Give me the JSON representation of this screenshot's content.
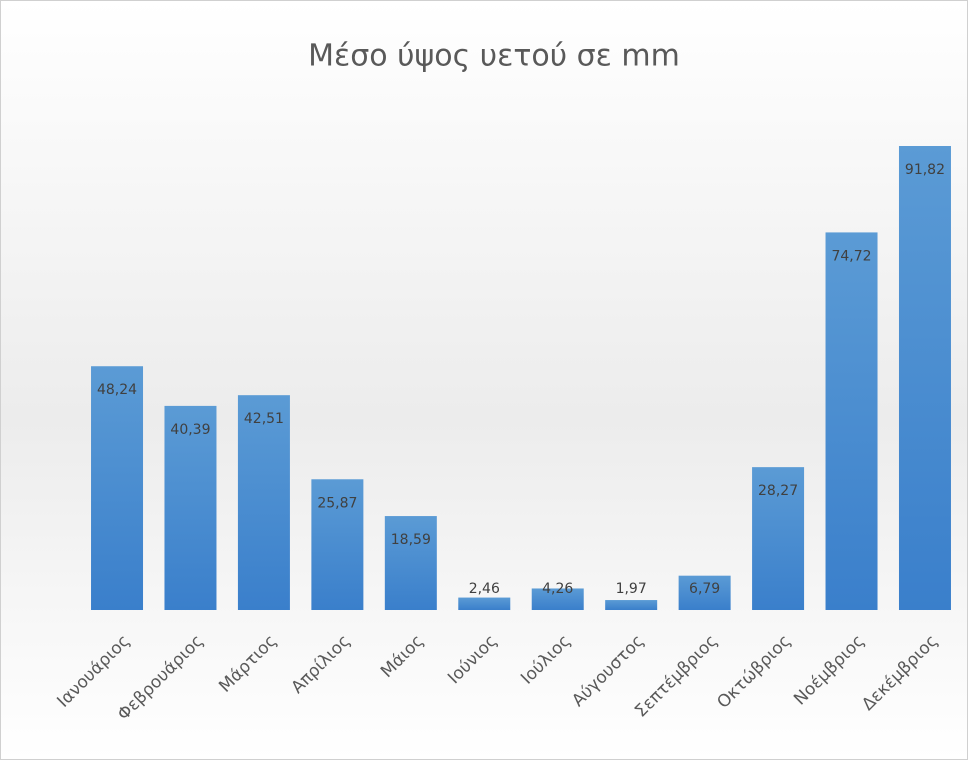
{
  "chart_data": {
    "type": "bar",
    "title": "Μέσο ύψος υετού σε mm",
    "categories": [
      "Ιανουάριος",
      "Φεβρουάριος",
      "Μάρτιος",
      "Απρίλιος",
      "Μάιος",
      "Ιούνιος",
      "Ιούλιος",
      "Αύγουστος",
      "Σεπτέμβριος",
      "Οκτώβριος",
      "Νοέμβριος",
      "Δεκέμβριος"
    ],
    "values": [
      48.24,
      40.39,
      42.51,
      25.87,
      18.59,
      2.46,
      4.26,
      1.97,
      6.79,
      28.27,
      74.72,
      91.82
    ],
    "value_labels": [
      "48,24",
      "40,39",
      "42,51",
      "25,87",
      "18,59",
      "2,46",
      "4,26",
      "1,97",
      "6,79",
      "28,27",
      "74,72",
      "91,82"
    ],
    "color": "#4a8fd6"
  }
}
